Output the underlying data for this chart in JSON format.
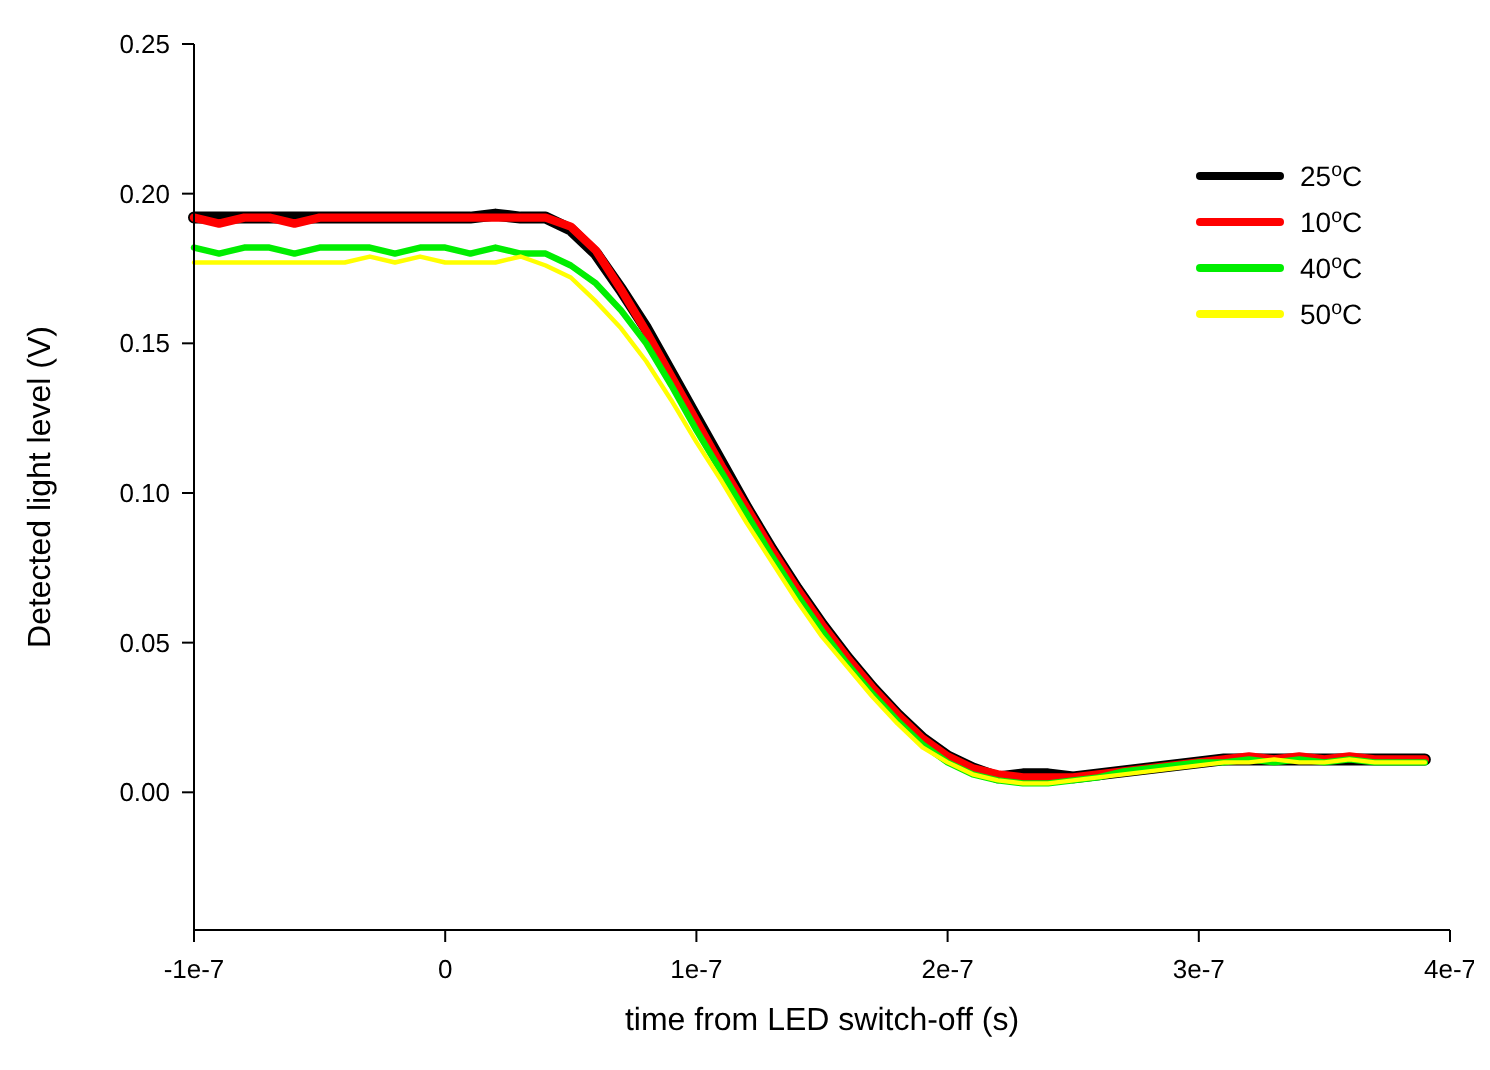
{
  "chart_data": {
    "type": "line",
    "xlabel": "time from LED switch-off (s)",
    "ylabel": "Detected light level (V)",
    "x": [
      -1e-07,
      -9e-08,
      -8e-08,
      -7e-08,
      -6e-08,
      -5e-08,
      -4e-08,
      -3e-08,
      -2e-08,
      -1e-08,
      0,
      1e-08,
      2e-08,
      3e-08,
      4e-08,
      5e-08,
      6e-08,
      7e-08,
      8e-08,
      9e-08,
      1e-07,
      1.1e-07,
      1.2e-07,
      1.3e-07,
      1.4e-07,
      1.5e-07,
      1.6e-07,
      1.7e-07,
      1.8e-07,
      1.9e-07,
      2e-07,
      2.1e-07,
      2.2e-07,
      2.3e-07,
      2.4e-07,
      2.5e-07,
      2.6e-07,
      2.7e-07,
      2.8e-07,
      2.9e-07,
      3e-07,
      3.1e-07,
      3.2e-07,
      3.3e-07,
      3.4e-07,
      3.5e-07,
      3.6e-07,
      3.7e-07,
      3.8e-07,
      3.9e-07
    ],
    "series": [
      {
        "name": "25$^{o}$C",
        "color": "#000000",
        "values": [
          0.192,
          0.192,
          0.192,
          0.192,
          0.192,
          0.192,
          0.192,
          0.192,
          0.192,
          0.192,
          0.192,
          0.192,
          0.193,
          0.192,
          0.192,
          0.188,
          0.18,
          0.168,
          0.155,
          0.14,
          0.125,
          0.11,
          0.095,
          0.081,
          0.068,
          0.056,
          0.045,
          0.035,
          0.026,
          0.018,
          0.012,
          0.008,
          0.005,
          0.006,
          0.006,
          0.005,
          0.006,
          0.007,
          0.008,
          0.009,
          0.01,
          0.011,
          0.011,
          0.011,
          0.011,
          0.011,
          0.011,
          0.011,
          0.011,
          0.011
        ]
      },
      {
        "name": "10$^{o}$C",
        "color": "#ff0000",
        "values": [
          0.192,
          0.19,
          0.192,
          0.192,
          0.19,
          0.192,
          0.192,
          0.192,
          0.192,
          0.192,
          0.192,
          0.192,
          0.192,
          0.192,
          0.192,
          0.189,
          0.181,
          0.168,
          0.154,
          0.139,
          0.124,
          0.109,
          0.095,
          0.081,
          0.068,
          0.056,
          0.045,
          0.035,
          0.026,
          0.018,
          0.012,
          0.008,
          0.006,
          0.005,
          0.005,
          0.005,
          0.006,
          0.007,
          0.008,
          0.009,
          0.01,
          0.011,
          0.012,
          0.011,
          0.012,
          0.011,
          0.012,
          0.011,
          0.011,
          0.011
        ]
      },
      {
        "name": "40$^{o}$C",
        "color": "#00ee00",
        "values": [
          0.182,
          0.18,
          0.182,
          0.182,
          0.18,
          0.182,
          0.182,
          0.182,
          0.18,
          0.182,
          0.182,
          0.18,
          0.182,
          0.18,
          0.18,
          0.176,
          0.17,
          0.161,
          0.15,
          0.136,
          0.121,
          0.107,
          0.093,
          0.079,
          0.066,
          0.054,
          0.043,
          0.033,
          0.024,
          0.016,
          0.01,
          0.006,
          0.004,
          0.003,
          0.003,
          0.004,
          0.005,
          0.007,
          0.008,
          0.009,
          0.01,
          0.01,
          0.011,
          0.01,
          0.011,
          0.01,
          0.011,
          0.01,
          0.01,
          0.01
        ]
      },
      {
        "name": "50$^{o}$C",
        "color": "#ffff00",
        "values": [
          0.177,
          0.177,
          0.177,
          0.177,
          0.177,
          0.177,
          0.177,
          0.179,
          0.177,
          0.179,
          0.177,
          0.177,
          0.177,
          0.179,
          0.176,
          0.172,
          0.164,
          0.155,
          0.144,
          0.131,
          0.117,
          0.104,
          0.09,
          0.077,
          0.064,
          0.052,
          0.042,
          0.032,
          0.023,
          0.015,
          0.01,
          0.006,
          0.004,
          0.003,
          0.003,
          0.004,
          0.005,
          0.006,
          0.007,
          0.008,
          0.009,
          0.01,
          0.01,
          0.011,
          0.01,
          0.01,
          0.011,
          0.01,
          0.01,
          0.01
        ]
      }
    ],
    "xlim": [
      -1e-07,
      4e-07
    ],
    "xticks": [
      {
        "value": -1e-07,
        "label": "-1e-7"
      },
      0,
      {
        "value": 1e-07,
        "label": "1e-7"
      },
      {
        "value": 2e-07,
        "label": "2e-7"
      },
      {
        "value": 3e-07,
        "label": "3e-7"
      },
      {
        "value": 4e-07,
        "label": "4e-7"
      }
    ],
    "ylim": [
      -0.046,
      0.25
    ],
    "yticks": [
      {
        "value": 0,
        "label": "0.00"
      },
      {
        "value": 0.05,
        "label": "0.05"
      },
      {
        "value": 0.1,
        "label": "0.10"
      },
      {
        "value": 0.15,
        "label": "0.15"
      },
      {
        "value": 0.2,
        "label": "0.20"
      },
      {
        "value": 0.25,
        "label": "0.25"
      }
    ],
    "grid": false,
    "legend": "top right",
    "marker": "none",
    "line_style": "solid"
  }
}
